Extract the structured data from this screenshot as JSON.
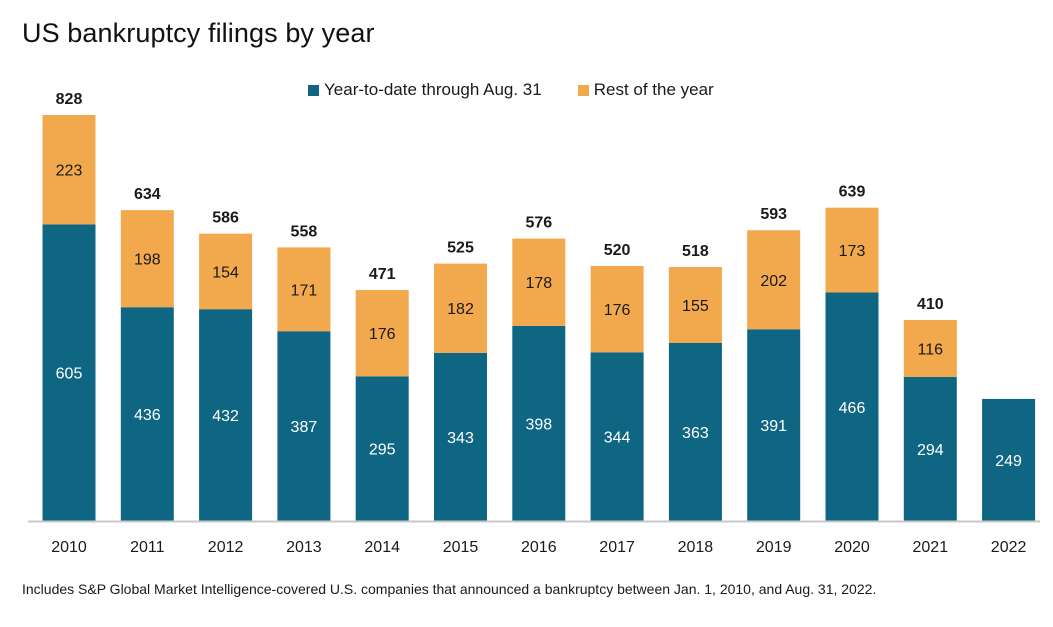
{
  "chart_data": {
    "type": "bar",
    "stacked": true,
    "title": "US bankruptcy filings by year",
    "categories": [
      "2010",
      "2011",
      "2012",
      "2013",
      "2014",
      "2015",
      "2016",
      "2017",
      "2018",
      "2019",
      "2020",
      "2021",
      "2022"
    ],
    "series": [
      {
        "name": "Year-to-date through Aug. 31",
        "color": "#0e6683",
        "values": [
          605,
          436,
          432,
          387,
          295,
          343,
          398,
          344,
          363,
          391,
          466,
          294,
          249
        ]
      },
      {
        "name": "Rest of the year",
        "color": "#f2a84c",
        "values": [
          223,
          198,
          154,
          171,
          176,
          182,
          178,
          176,
          155,
          202,
          173,
          116,
          null
        ]
      }
    ],
    "totals": [
      "828",
      "634",
      "586",
      "558",
      "471",
      "525",
      "576",
      "520",
      "518",
      "593",
      "639",
      "410",
      ""
    ],
    "ylim": [
      0,
      828
    ],
    "grid": false,
    "legend_position": "top-center"
  },
  "footnote": "Includes S&P Global Market Intelligence-covered U.S. companies that announced a bankruptcy between Jan. 1, 2010, and Aug. 31, 2022."
}
